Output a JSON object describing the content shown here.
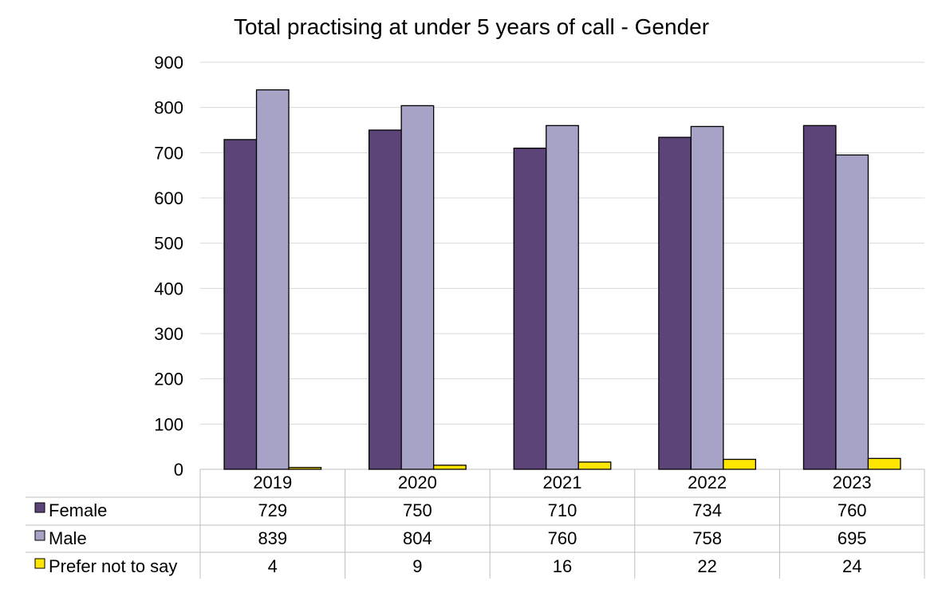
{
  "chart_data": {
    "type": "bar",
    "title": "Total practising at under 5 years of call - Gender",
    "xlabel": "",
    "ylabel": "",
    "ylim": [
      0,
      900
    ],
    "yticks": [
      0,
      100,
      200,
      300,
      400,
      500,
      600,
      700,
      800,
      900
    ],
    "grid": true,
    "legend": "data-table-left",
    "categories": [
      "2019",
      "2020",
      "2021",
      "2022",
      "2023"
    ],
    "series": [
      {
        "name": "Female",
        "color": "#5C4479",
        "values": [
          729,
          750,
          710,
          734,
          760
        ]
      },
      {
        "name": "Male",
        "color": "#A6A3C6",
        "values": [
          839,
          804,
          760,
          758,
          695
        ]
      },
      {
        "name": "Prefer not to say",
        "color": "#FFE600",
        "values": [
          4,
          9,
          16,
          22,
          24
        ]
      }
    ]
  }
}
